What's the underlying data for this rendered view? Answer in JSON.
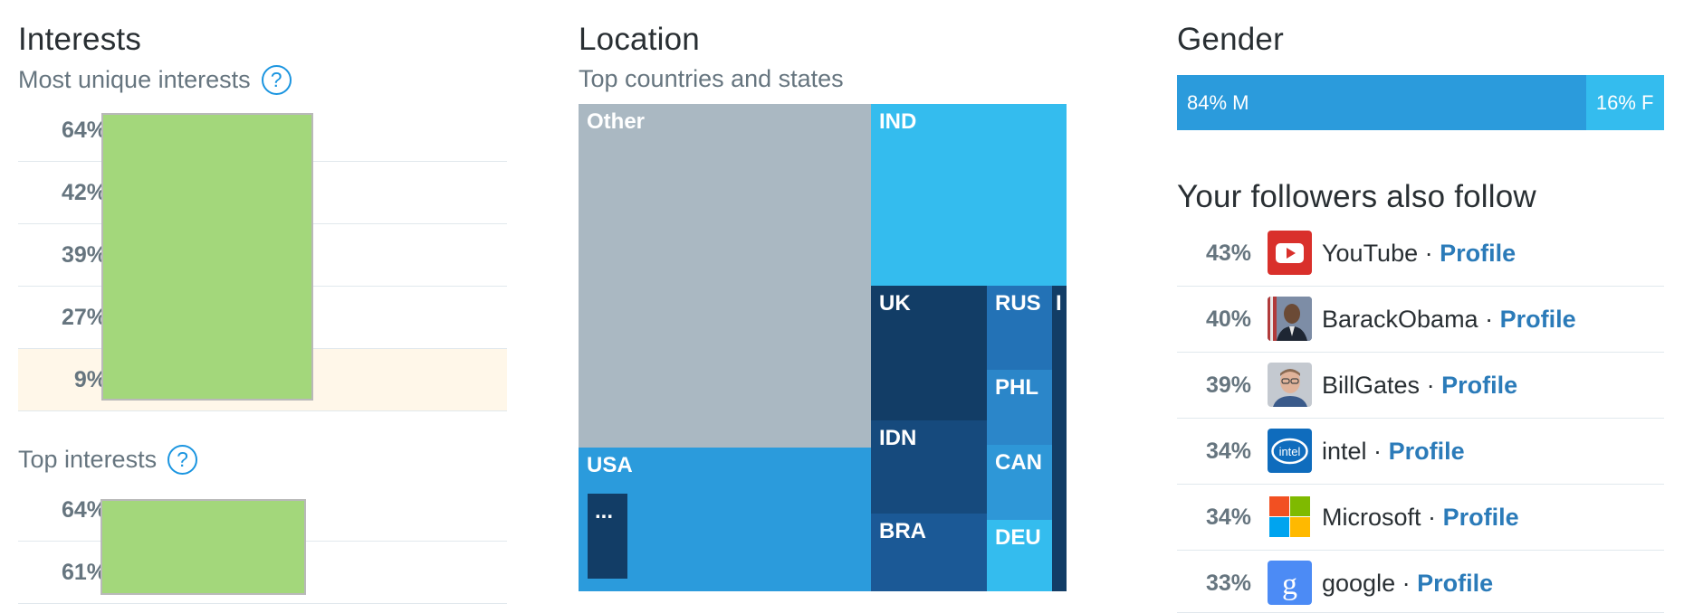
{
  "interests": {
    "title": "Interests",
    "unique_subtitle": "Most unique interests",
    "unique_help": "?",
    "unique_rows": [
      {
        "pct": "64%"
      },
      {
        "pct": "42%"
      },
      {
        "pct": "39%"
      },
      {
        "pct": "27%"
      },
      {
        "pct": "9%"
      }
    ],
    "top_subtitle": "Top interests",
    "top_help": "?",
    "top_rows": [
      {
        "pct": "64%"
      },
      {
        "pct": "61%"
      }
    ]
  },
  "location": {
    "title": "Location",
    "subtitle": "Top countries and states",
    "cells": [
      {
        "label": "Other",
        "color": "#aab8c2"
      },
      {
        "label": "IND",
        "color": "#34bcee"
      },
      {
        "label": "USA",
        "color": "#2b9bdc"
      },
      {
        "label": "...",
        "color": "#123d66"
      },
      {
        "label": "UK",
        "color": "#123d66"
      },
      {
        "label": "IDN",
        "color": "#164a7d"
      },
      {
        "label": "BRA",
        "color": "#1b5996"
      },
      {
        "label": "RUS",
        "color": "#2372b6"
      },
      {
        "label": "PHL",
        "color": "#2b86c9"
      },
      {
        "label": "CAN",
        "color": "#2e97d7"
      },
      {
        "label": "DEU",
        "color": "#34bcee"
      },
      {
        "label": "I",
        "color": "#123d66"
      }
    ]
  },
  "gender": {
    "title": "Gender",
    "male_label": "84% M",
    "female_label": "16% F",
    "male_pct": 84,
    "female_pct": 16,
    "colors": {
      "male": "#2b9bdc",
      "female": "#34bcee"
    }
  },
  "followers": {
    "title": "Your followers also follow",
    "separator": "·",
    "profile_label": "Profile",
    "items": [
      {
        "pct": "43%",
        "name": "YouTube",
        "icon": "youtube-icon"
      },
      {
        "pct": "40%",
        "name": "BarackObama",
        "icon": "barackobama-avatar"
      },
      {
        "pct": "39%",
        "name": "BillGates",
        "icon": "billgates-avatar"
      },
      {
        "pct": "34%",
        "name": "intel",
        "icon": "intel-icon"
      },
      {
        "pct": "34%",
        "name": "Microsoft",
        "icon": "microsoft-icon"
      },
      {
        "pct": "33%",
        "name": "google",
        "icon": "google-icon"
      }
    ],
    "intel_logo_text": "intel"
  }
}
